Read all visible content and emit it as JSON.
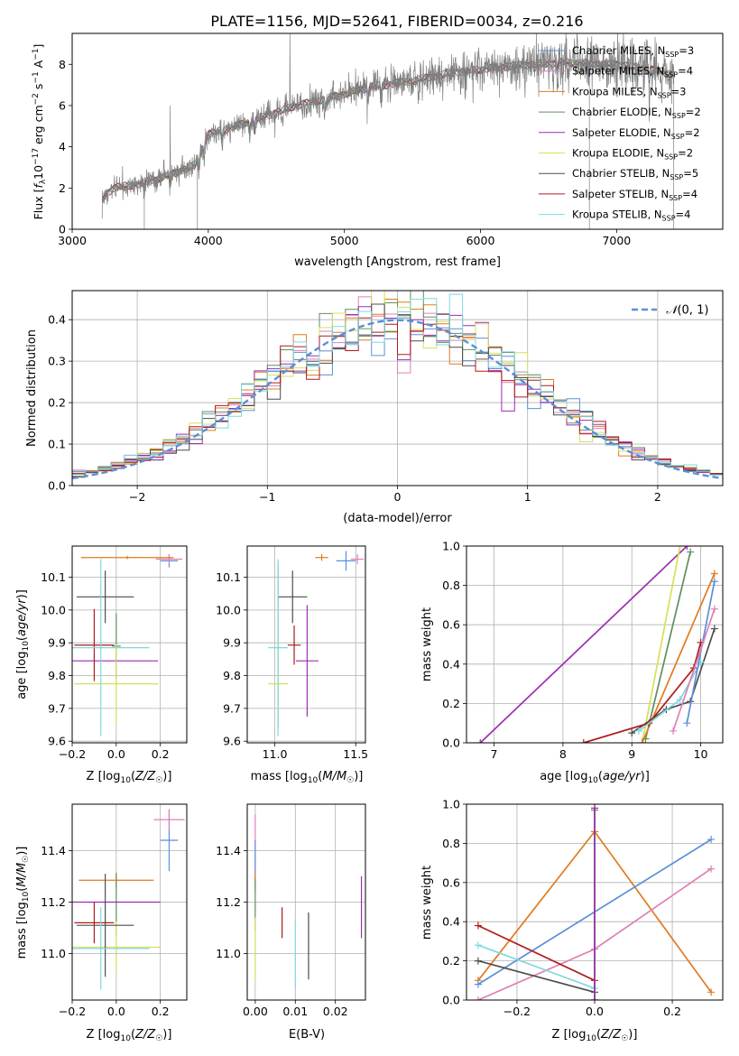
{
  "figure_title": "PLATE=1156, MJD=52641, FIBERID=0034, z=0.216",
  "colors": {
    "Chabrier MILES": "#5b8fd9",
    "Salpeter MILES": "#e07fb6",
    "Kroupa MILES": "#e07b1f",
    "Chabrier ELODIE": "#5f8f5f",
    "Salpeter ELODIE": "#9b2fb0",
    "Kroupa ELODIE": "#d6e05a",
    "Chabrier STELIB": "#4d4d4d",
    "Salpeter STELIB": "#b01a1a",
    "Kroupa STELIB": "#7fd8e0",
    "data": "#7f7f7f",
    "normal_fit": "#5b8fd9",
    "grid": "#b0b0b0"
  },
  "chart_data": [
    {
      "id": "spectrum",
      "type": "line",
      "title": "PLATE=1156, MJD=52641, FIBERID=0034, z=0.216",
      "xlabel": "wavelength [Angstrom, rest frame]",
      "ylabel": "Flux [f_λ 10^-17 erg cm^-2 s^-1 A^-1]",
      "xlim": [
        3000,
        7780
      ],
      "ylim": [
        0,
        9.5
      ],
      "xticks": [
        3000,
        4000,
        5000,
        6000,
        7000
      ],
      "yticks": [
        0,
        2,
        4,
        6,
        8
      ],
      "grid": false,
      "legend_position": "right",
      "legend": [
        {
          "name": "Chabrier MILES",
          "label": "Chabrier MILES, N",
          "sub": "SSP",
          "suffix": "=3"
        },
        {
          "name": "Salpeter MILES",
          "label": "Salpeter MILES, N",
          "sub": "SSP",
          "suffix": "=4"
        },
        {
          "name": "Kroupa MILES",
          "label": "Kroupa MILES, N",
          "sub": "SSP",
          "suffix": "=3"
        },
        {
          "name": "Chabrier ELODIE",
          "label": "Chabrier ELODIE, N",
          "sub": "SSP",
          "suffix": "=2"
        },
        {
          "name": "Salpeter ELODIE",
          "label": "Salpeter ELODIE, N",
          "sub": "SSP",
          "suffix": "=2"
        },
        {
          "name": "Kroupa ELODIE",
          "label": "Kroupa ELODIE, N",
          "sub": "SSP",
          "suffix": "=2"
        },
        {
          "name": "Chabrier STELIB",
          "label": "Chabrier STELIB, N",
          "sub": "SSP",
          "suffix": "=5"
        },
        {
          "name": "Salpeter STELIB",
          "label": "Salpeter STELIB, N",
          "sub": "SSP",
          "suffix": "=4"
        },
        {
          "name": "Kroupa STELIB",
          "label": "Kroupa STELIB, N",
          "sub": "SSP",
          "suffix": "=4"
        }
      ],
      "continuum_knots": [
        [
          3220,
          1.5
        ],
        [
          3300,
          2.0
        ],
        [
          3500,
          2.2
        ],
        [
          3700,
          2.6
        ],
        [
          3900,
          3.1
        ],
        [
          4000,
          4.6
        ],
        [
          4300,
          5.2
        ],
        [
          4600,
          5.9
        ],
        [
          4900,
          6.4
        ],
        [
          5200,
          6.9
        ],
        [
          5500,
          7.2
        ],
        [
          5800,
          7.6
        ],
        [
          6200,
          7.9
        ],
        [
          6600,
          8.1
        ],
        [
          7000,
          8.0
        ],
        [
          7300,
          7.7
        ],
        [
          7420,
          7.5
        ]
      ],
      "dips": [
        3530,
        3720,
        3933,
        3968,
        4101,
        4305,
        4340,
        4861,
        5175,
        5270,
        5890,
        6563,
        6800,
        7240
      ],
      "spikes": [
        [
          4600,
          9.5
        ],
        [
          3720,
          6.0
        ],
        [
          5007,
          7.2
        ]
      ]
    },
    {
      "id": "residual_hist",
      "type": "histogram",
      "xlabel": "(data-model)/error",
      "ylabel": "Normed distribution",
      "xlim": [
        -2.5,
        2.5
      ],
      "ylim": [
        0,
        0.47
      ],
      "xticks": [
        -2,
        -1,
        0,
        1,
        2
      ],
      "yticks": [
        0.0,
        0.1,
        0.2,
        0.3,
        0.4
      ],
      "grid": true,
      "legend_position": "top-right",
      "fit_label": "N(0,1)",
      "bin_width": 0.1
    },
    {
      "id": "age_vs_Z",
      "type": "errorbar",
      "xlabel": "Z [log10(Z/Z☉)]",
      "ylabel": "age [log10(age/yr)]",
      "xlim": [
        -0.2,
        0.32
      ],
      "ylim": [
        9.595,
        10.195
      ],
      "xticks": [
        -0.2,
        0.0,
        0.2
      ],
      "yticks": [
        9.6,
        9.7,
        9.8,
        9.9,
        10.0,
        10.1
      ],
      "grid": true,
      "points": [
        {
          "series": "Chabrier MILES",
          "x": 0.24,
          "xerr": 0.04,
          "y": 10.15,
          "yerr": 0.02
        },
        {
          "series": "Salpeter MILES",
          "x": 0.24,
          "xerr": 0.06,
          "y": 10.155,
          "yerr": 0.015
        },
        {
          "series": "Kroupa MILES",
          "x": 0.05,
          "xerr": 0.21,
          "y": 10.16,
          "yerr": 0.005
        },
        {
          "series": "Chabrier ELODIE",
          "x": 0.0,
          "xerr": 0.02,
          "y": 9.89,
          "yerr": 0.1
        },
        {
          "series": "Salpeter ELODIE",
          "x": -0.05,
          "xerr": 0.24,
          "y": 9.845,
          "yerr": 0.0
        },
        {
          "series": "Kroupa ELODIE",
          "x": 0.0,
          "xerr": 0.19,
          "y": 9.775,
          "yerr": 0.12
        },
        {
          "series": "Chabrier STELIB",
          "x": -0.05,
          "xerr": 0.13,
          "y": 10.04,
          "yerr": 0.08
        },
        {
          "series": "Salpeter STELIB",
          "x": -0.1,
          "xerr": 0.09,
          "y": 9.893,
          "yerr": 0.11
        },
        {
          "series": "Kroupa STELIB",
          "x": -0.07,
          "xerr": 0.22,
          "y": 9.885,
          "yerr": 0.27
        }
      ]
    },
    {
      "id": "age_vs_mass",
      "type": "errorbar",
      "xlabel": "mass [log10(M/M☉)]",
      "ylabel": "",
      "xlim": [
        10.83,
        11.56
      ],
      "ylim": [
        9.595,
        10.195
      ],
      "xticks": [
        11.0,
        11.5
      ],
      "yticks": [
        9.6,
        9.7,
        9.8,
        9.9,
        10.0,
        10.1
      ],
      "grid": true,
      "points": [
        {
          "series": "Chabrier MILES",
          "x": 11.44,
          "xerr": 0.06,
          "y": 10.15,
          "yerr": 0.03
        },
        {
          "series": "Salpeter MILES",
          "x": 11.51,
          "xerr": 0.04,
          "y": 10.155,
          "yerr": 0.015
        },
        {
          "series": "Kroupa MILES",
          "x": 11.29,
          "xerr": 0.04,
          "y": 10.16,
          "yerr": 0.01
        },
        {
          "series": "Chabrier ELODIE",
          "x": 11.02,
          "xerr": 0.0,
          "y": 9.89,
          "yerr": 0.25
        },
        {
          "series": "Salpeter ELODIE",
          "x": 11.2,
          "xerr": 0.07,
          "y": 9.845,
          "yerr": 0.17
        },
        {
          "series": "Kroupa ELODIE",
          "x": 11.02,
          "xerr": 0.06,
          "y": 9.775,
          "yerr": 0.13
        },
        {
          "series": "Chabrier STELIB",
          "x": 11.11,
          "xerr": 0.09,
          "y": 10.04,
          "yerr": 0.08
        },
        {
          "series": "Salpeter STELIB",
          "x": 11.12,
          "xerr": 0.04,
          "y": 9.893,
          "yerr": 0.06
        },
        {
          "series": "Kroupa STELIB",
          "x": 11.02,
          "xerr": 0.06,
          "y": 9.885,
          "yerr": 0.27
        }
      ]
    },
    {
      "id": "massweight_vs_age",
      "type": "line",
      "xlabel": "age [log10(age/yr)]",
      "ylabel": "mass weight",
      "xlim": [
        6.6,
        10.32
      ],
      "ylim": [
        0,
        1
      ],
      "xticks": [
        7,
        8,
        9,
        10
      ],
      "yticks": [
        0.0,
        0.2,
        0.4,
        0.6,
        0.8,
        1.0
      ],
      "grid": true,
      "series": [
        {
          "name": "Salpeter ELODIE",
          "points": [
            [
              6.8,
              0.0
            ],
            [
              9.8,
              1.0
            ]
          ]
        },
        {
          "name": "Kroupa ELODIE",
          "points": [
            [
              9.15,
              0.0
            ],
            [
              9.7,
              1.0
            ]
          ]
        },
        {
          "name": "Chabrier ELODIE",
          "points": [
            [
              9.2,
              0.02
            ],
            [
              9.85,
              0.97
            ]
          ]
        },
        {
          "name": "Kroupa MILES",
          "points": [
            [
              9.15,
              0.0
            ],
            [
              10.2,
              0.86
            ]
          ]
        },
        {
          "name": "Chabrier STELIB",
          "points": [
            [
              9.0,
              0.05
            ],
            [
              9.5,
              0.17
            ],
            [
              9.85,
              0.21
            ],
            [
              10.2,
              0.58
            ]
          ]
        },
        {
          "name": "Salpeter STELIB",
          "points": [
            [
              8.3,
              0.0
            ],
            [
              9.25,
              0.1
            ],
            [
              9.9,
              0.38
            ],
            [
              10.0,
              0.51
            ]
          ]
        },
        {
          "name": "Kroupa STELIB",
          "points": [
            [
              9.1,
              0.06
            ],
            [
              9.7,
              0.22
            ],
            [
              10.0,
              0.41
            ]
          ]
        },
        {
          "name": "Chabrier MILES",
          "points": [
            [
              9.8,
              0.1
            ],
            [
              10.2,
              0.82
            ]
          ]
        },
        {
          "name": "Salpeter MILES",
          "points": [
            [
              9.6,
              0.06
            ],
            [
              10.2,
              0.68
            ]
          ]
        }
      ]
    },
    {
      "id": "mass_vs_Z",
      "type": "errorbar",
      "xlabel": "Z [log10(Z/Z☉)]",
      "ylabel": "mass [log10(M/M☉)]",
      "xlim": [
        -0.2,
        0.32
      ],
      "ylim": [
        10.82,
        11.58
      ],
      "xticks": [
        -0.2,
        0.0,
        0.2
      ],
      "yticks": [
        11.0,
        11.2,
        11.4
      ],
      "grid": true,
      "points": [
        {
          "series": "Chabrier MILES",
          "x": 0.24,
          "xerr": 0.04,
          "y": 11.44,
          "yerr": 0.12
        },
        {
          "series": "Salpeter MILES",
          "x": 0.24,
          "xerr": 0.07,
          "y": 11.52,
          "yerr": 0.04
        },
        {
          "series": "Kroupa MILES",
          "x": 0.0,
          "xerr": 0.17,
          "y": 11.285,
          "yerr": 0.03
        },
        {
          "series": "Chabrier ELODIE",
          "x": 0.0,
          "xerr": 0.0,
          "y": 11.19,
          "yerr": 0.12
        },
        {
          "series": "Salpeter ELODIE",
          "x": 0.0,
          "xerr": 0.2,
          "y": 11.2,
          "yerr": 0.0
        },
        {
          "series": "Kroupa ELODIE",
          "x": 0.0,
          "xerr": 0.2,
          "y": 11.025,
          "yerr": 0.1
        },
        {
          "series": "Chabrier STELIB",
          "x": -0.05,
          "xerr": 0.13,
          "y": 11.11,
          "yerr": 0.2
        },
        {
          "series": "Salpeter STELIB",
          "x": -0.1,
          "xerr": 0.09,
          "y": 11.12,
          "yerr": 0.08
        },
        {
          "series": "Kroupa STELIB",
          "x": -0.07,
          "xerr": 0.22,
          "y": 11.02,
          "yerr": 0.16
        }
      ]
    },
    {
      "id": "mass_vs_ebv",
      "type": "errorbar",
      "xlabel": "E(B-V)",
      "ylabel": "",
      "xlim": [
        -0.002,
        0.0275
      ],
      "ylim": [
        10.82,
        11.58
      ],
      "xticks": [
        0.0,
        0.01,
        0.02
      ],
      "yticks": [
        11.0,
        11.2,
        11.4
      ],
      "grid": true,
      "points": [
        {
          "series": "Salpeter MILES",
          "x": 0.0,
          "xerr": 0,
          "y": 11.4,
          "yerr": 0.14
        },
        {
          "series": "Chabrier MILES",
          "x": 0.0,
          "xerr": 0,
          "y": 11.36,
          "yerr": 0.08
        },
        {
          "series": "Kroupa MILES",
          "x": 0.0,
          "xerr": 0,
          "y": 11.28,
          "yerr": 0.04
        },
        {
          "series": "Chabrier ELODIE",
          "x": 0.0,
          "xerr": 0,
          "y": 11.19,
          "yerr": 0.1
        },
        {
          "series": "Kroupa ELODIE",
          "x": 0.0,
          "xerr": 0,
          "y": 11.02,
          "yerr": 0.12
        },
        {
          "series": "Salpeter STELIB",
          "x": 0.0067,
          "xerr": 0,
          "y": 11.12,
          "yerr": 0.06
        },
        {
          "series": "Kroupa STELIB",
          "x": 0.01,
          "xerr": 0,
          "y": 11.0,
          "yerr": 0.13
        },
        {
          "series": "Chabrier STELIB",
          "x": 0.0133,
          "xerr": 0,
          "y": 11.03,
          "yerr": 0.13
        },
        {
          "series": "Salpeter ELODIE",
          "x": 0.0265,
          "xerr": 0,
          "y": 11.18,
          "yerr": 0.12
        }
      ]
    },
    {
      "id": "massweight_vs_Z",
      "type": "line",
      "xlabel": "Z [log10(Z/Z☉)]",
      "ylabel": "mass weight",
      "xlim": [
        -0.33,
        0.33
      ],
      "ylim": [
        0,
        1
      ],
      "xticks": [
        -0.2,
        0.0,
        0.2
      ],
      "yticks": [
        0.0,
        0.2,
        0.4,
        0.6,
        0.8,
        1.0
      ],
      "grid": true,
      "series": [
        {
          "name": "Kroupa MILES",
          "points": [
            [
              -0.3,
              0.1
            ],
            [
              0.0,
              0.86
            ],
            [
              0.3,
              0.04
            ]
          ]
        },
        {
          "name": "Chabrier MILES",
          "points": [
            [
              -0.3,
              0.08
            ],
            [
              0.3,
              0.82
            ]
          ]
        },
        {
          "name": "Salpeter MILES",
          "points": [
            [
              -0.3,
              0.0
            ],
            [
              0.0,
              0.26
            ],
            [
              0.3,
              0.67
            ]
          ]
        },
        {
          "name": "Salpeter STELIB",
          "points": [
            [
              -0.3,
              0.38
            ],
            [
              0.0,
              0.1
            ]
          ]
        },
        {
          "name": "Kroupa STELIB",
          "points": [
            [
              -0.3,
              0.28
            ],
            [
              0.0,
              0.06
            ]
          ]
        },
        {
          "name": "Chabrier STELIB",
          "points": [
            [
              -0.3,
              0.2
            ],
            [
              0.0,
              0.04
            ]
          ]
        },
        {
          "name": "Kroupa ELODIE",
          "points": [
            [
              0.0,
              0.0
            ],
            [
              0.0,
              1.0
            ]
          ]
        },
        {
          "name": "Chabrier ELODIE",
          "points": [
            [
              0.0,
              0.0
            ],
            [
              0.0,
              0.97
            ]
          ]
        },
        {
          "name": "Salpeter ELODIE",
          "points": [
            [
              0.0,
              0.0
            ],
            [
              0.0,
              0.98
            ]
          ]
        }
      ]
    }
  ]
}
